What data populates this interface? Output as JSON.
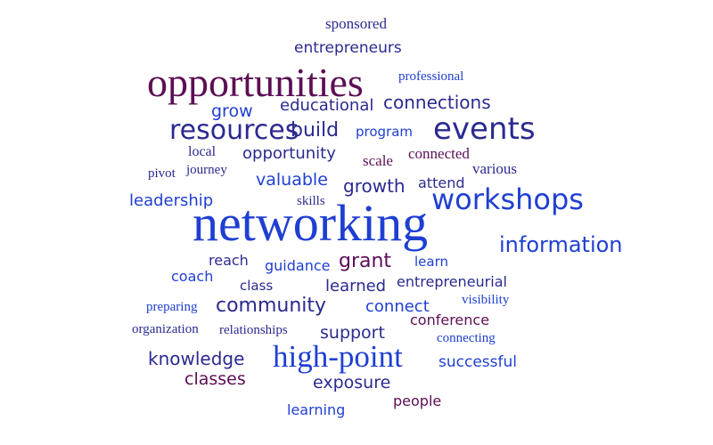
{
  "colors": {
    "purple": "#5c0e55",
    "blue": "#1f3fd2",
    "darkblue": "#2b2a90"
  },
  "words": [
    {
      "text": "sponsored",
      "color": "darkblue"
    },
    {
      "text": "entrepreneurs",
      "color": "darkblue"
    },
    {
      "text": "professional",
      "color": "blue"
    },
    {
      "text": "opportunities",
      "color": "purple"
    },
    {
      "text": "grow",
      "color": "blue"
    },
    {
      "text": "educational",
      "color": "darkblue"
    },
    {
      "text": "connections",
      "color": "darkblue"
    },
    {
      "text": "resources",
      "color": "darkblue"
    },
    {
      "text": "build",
      "color": "darkblue"
    },
    {
      "text": "program",
      "color": "blue"
    },
    {
      "text": "events",
      "color": "darkblue"
    },
    {
      "text": "local",
      "color": "darkblue"
    },
    {
      "text": "opportunity",
      "color": "darkblue"
    },
    {
      "text": "scale",
      "color": "purple"
    },
    {
      "text": "connected",
      "color": "purple"
    },
    {
      "text": "various",
      "color": "darkblue"
    },
    {
      "text": "pivot",
      "color": "darkblue"
    },
    {
      "text": "journey",
      "color": "darkblue"
    },
    {
      "text": "valuable",
      "color": "blue"
    },
    {
      "text": "growth",
      "color": "darkblue"
    },
    {
      "text": "attend",
      "color": "darkblue"
    },
    {
      "text": "leadership",
      "color": "blue"
    },
    {
      "text": "skills",
      "color": "darkblue"
    },
    {
      "text": "workshops",
      "color": "blue"
    },
    {
      "text": "networking",
      "color": "blue"
    },
    {
      "text": "information",
      "color": "blue"
    },
    {
      "text": "reach",
      "color": "darkblue"
    },
    {
      "text": "guidance",
      "color": "blue"
    },
    {
      "text": "grant",
      "color": "purple"
    },
    {
      "text": "learn",
      "color": "blue"
    },
    {
      "text": "coach",
      "color": "blue"
    },
    {
      "text": "class",
      "color": "darkblue"
    },
    {
      "text": "learned",
      "color": "darkblue"
    },
    {
      "text": "entrepreneurial",
      "color": "darkblue"
    },
    {
      "text": "visibility",
      "color": "blue"
    },
    {
      "text": "preparing",
      "color": "blue"
    },
    {
      "text": "community",
      "color": "darkblue"
    },
    {
      "text": "connect",
      "color": "blue"
    },
    {
      "text": "conference",
      "color": "purple"
    },
    {
      "text": "organization",
      "color": "darkblue"
    },
    {
      "text": "relationships",
      "color": "darkblue"
    },
    {
      "text": "support",
      "color": "darkblue"
    },
    {
      "text": "connecting",
      "color": "blue"
    },
    {
      "text": "knowledge",
      "color": "darkblue"
    },
    {
      "text": "high-point",
      "color": "blue"
    },
    {
      "text": "successful",
      "color": "blue"
    },
    {
      "text": "classes",
      "color": "purple"
    },
    {
      "text": "exposure",
      "color": "darkblue"
    },
    {
      "text": "learning",
      "color": "blue"
    },
    {
      "text": "people",
      "color": "purple"
    }
  ]
}
